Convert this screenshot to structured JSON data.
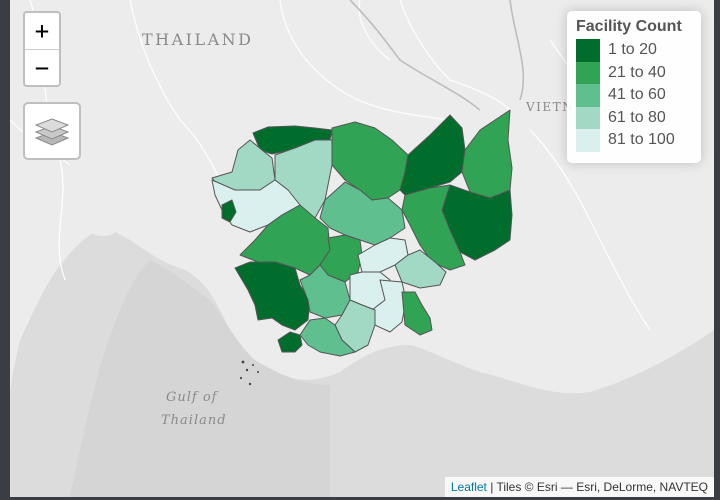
{
  "map": {
    "labels": {
      "thailand": "THAILAND",
      "vietnam": "VIETN",
      "gulf_line1": "Gulf of",
      "gulf_line2": "Thailand"
    }
  },
  "controls": {
    "zoom_in": "+",
    "zoom_out": "−",
    "layers_icon": "layers-icon"
  },
  "legend": {
    "title": "Facility Count",
    "items": [
      {
        "label": "1 to 20",
        "color": "#006d2c"
      },
      {
        "label": "21 to 40",
        "color": "#31a354"
      },
      {
        "label": "41 to 60",
        "color": "#5fbf8f"
      },
      {
        "label": "61 to 80",
        "color": "#a1d9c4"
      },
      {
        "label": "81 to 100",
        "color": "#daf0ee"
      }
    ]
  },
  "attribution": {
    "link": "Leaflet",
    "text": " | Tiles © Esri — Esri, DeLorme, NAVTEQ"
  }
}
